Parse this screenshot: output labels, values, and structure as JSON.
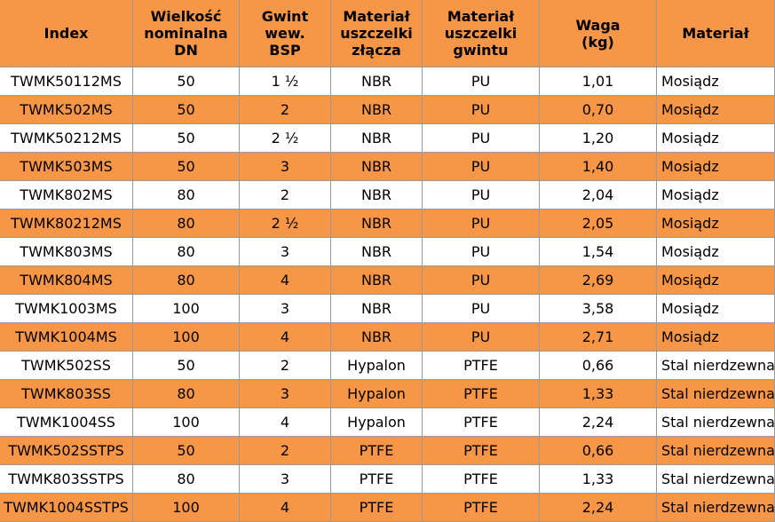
{
  "table": {
    "header": [
      [
        "Index"
      ],
      [
        "Wielkość",
        "nominalna",
        "DN"
      ],
      [
        "Gwint",
        "wew.",
        "BSP"
      ],
      [
        "Materiał",
        "uszczelki",
        "złącza"
      ],
      [
        "Materiał",
        "uszczelki",
        "gwintu"
      ],
      [
        "Waga",
        "(kg)"
      ],
      [
        "Materiał"
      ]
    ],
    "rows": [
      [
        "TWMK50112MS",
        "50",
        "1 ½",
        "NBR",
        "PU",
        "1,01",
        "Mosiądz"
      ],
      [
        "TWMK502MS",
        "50",
        "2",
        "NBR",
        "PU",
        "0,70",
        "Mosiądz"
      ],
      [
        "TWMK50212MS",
        "50",
        "2 ½",
        "NBR",
        "PU",
        "1,20",
        "Mosiądz"
      ],
      [
        "TWMK503MS",
        "50",
        "3",
        "NBR",
        "PU",
        "1,40",
        "Mosiądz"
      ],
      [
        "TWMK802MS",
        "80",
        "2",
        "NBR",
        "PU",
        "2,04",
        "Mosiądz"
      ],
      [
        "TWMK80212MS",
        "80",
        "2 ½",
        "NBR",
        "PU",
        "2,05",
        "Mosiądz"
      ],
      [
        "TWMK803MS",
        "80",
        "3",
        "NBR",
        "PU",
        "1,54",
        "Mosiądz"
      ],
      [
        "TWMK804MS",
        "80",
        "4",
        "NBR",
        "PU",
        "2,69",
        "Mosiądz"
      ],
      [
        "TWMK1003MS",
        "100",
        "3",
        "NBR",
        "PU",
        "3,58",
        "Mosiądz"
      ],
      [
        "TWMK1004MS",
        "100",
        "4",
        "NBR",
        "PU",
        "2,71",
        "Mosiądz"
      ],
      [
        "TWMK502SS",
        "50",
        "2",
        "Hypalon",
        "PTFE",
        "0,66",
        "Stal nierdzewna"
      ],
      [
        "TWMK803SS",
        "80",
        "3",
        "Hypalon",
        "PTFE",
        "1,33",
        "Stal nierdzewna"
      ],
      [
        "TWMK1004SS",
        "100",
        "4",
        "Hypalon",
        "PTFE",
        "2,24",
        "Stal nierdzewna"
      ],
      [
        "TWMK502SSTPS",
        "50",
        "2",
        "PTFE",
        "PTFE",
        "0,66",
        "Stal nierdzewna"
      ],
      [
        "TWMK803SSTPS",
        "80",
        "3",
        "PTFE",
        "PTFE",
        "1,33",
        "Stal nierdzewna"
      ],
      [
        "TWMK1004SSTPS",
        "100",
        "4",
        "PTFE",
        "PTFE",
        "2,24",
        "Stal nierdzewna"
      ]
    ]
  }
}
